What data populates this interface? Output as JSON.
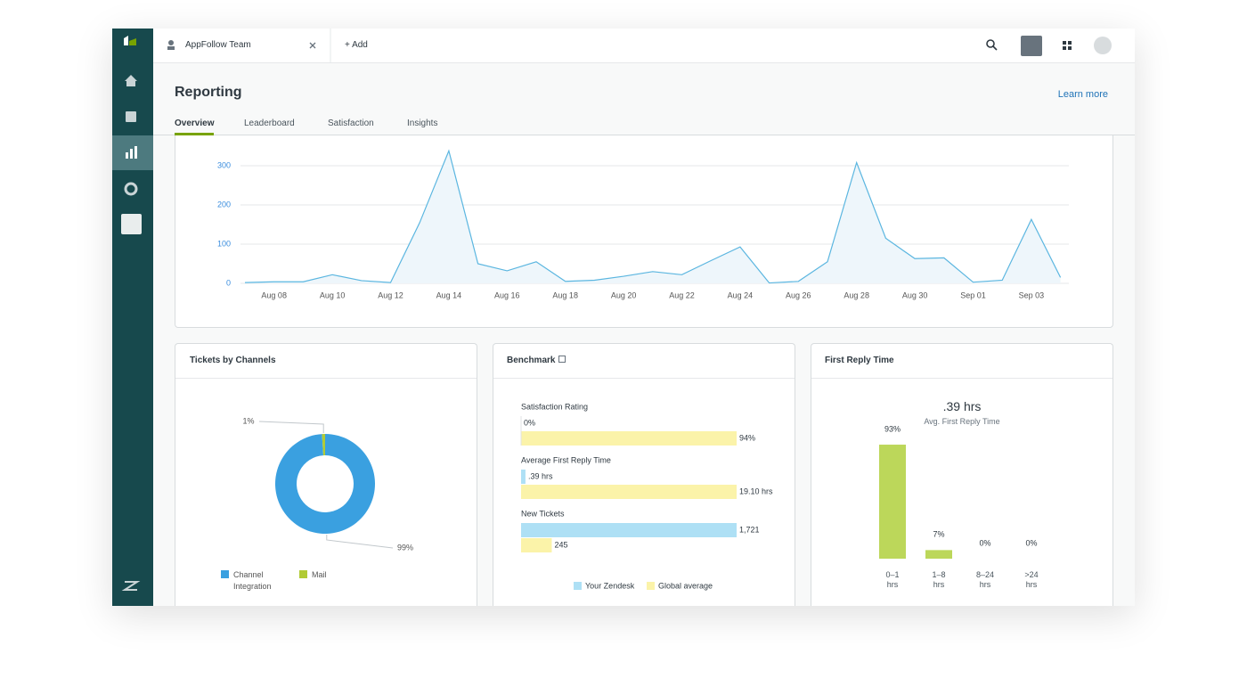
{
  "top_bar": {
    "tab": "AppFollow Team",
    "add": "+ Add"
  },
  "header": {
    "title": "Reporting",
    "link": "Learn more"
  },
  "tabs": [
    "Overview",
    "Leaderboard",
    "Satisfaction",
    "Insights"
  ],
  "chart_data": [
    {
      "type": "line",
      "categories": [
        null,
        "Aug 08",
        null,
        "Aug 10",
        null,
        "Aug 12",
        null,
        "Aug 14",
        null,
        "Aug 16",
        null,
        "Aug 18",
        null,
        "Aug 20",
        null,
        "Aug 22",
        null,
        "Aug 24",
        null,
        "Aug 26",
        null,
        "Aug 28",
        null,
        "Aug 30",
        null,
        "Sep 01",
        null,
        "Sep 03",
        null
      ],
      "values": [
        2,
        4,
        4,
        22,
        7,
        2,
        155,
        338,
        50,
        32,
        55,
        5,
        8,
        18,
        30,
        22,
        58,
        93,
        1,
        5,
        55,
        308,
        115,
        63,
        65,
        3,
        8,
        163,
        15
      ],
      "color": "#5bb6e0",
      "ylim": [
        0,
        350
      ],
      "yticks": [
        0,
        100,
        200,
        300
      ],
      "grid": true
    },
    {
      "type": "pie",
      "title": "Tickets by Channels",
      "donut": true,
      "categories": [
        "Channel Integration",
        "Mail"
      ],
      "values": [
        99,
        1
      ],
      "value_labels": [
        "99%",
        "1%"
      ],
      "colors": [
        "#3aa0e0",
        "#b1cb34"
      ]
    },
    {
      "type": "hbar",
      "title": "Benchmark",
      "categories": [
        "Satisfaction Rating",
        "Average First Reply Time",
        "New Tickets"
      ],
      "series": [
        {
          "name": "Your Zendesk",
          "color": "#aee0f5",
          "values": [
            0,
            0.39,
            1721
          ],
          "value_labels": [
            "0%",
            ".39 hrs",
            "1,721"
          ]
        },
        {
          "name": "Global average",
          "color": "#fbf3a9",
          "values": [
            94,
            19.1,
            245
          ],
          "value_labels": [
            "94%",
            "19.10 hrs",
            "245"
          ]
        }
      ]
    },
    {
      "type": "bar",
      "title": "First Reply Time",
      "summary_value": ".39 hrs",
      "summary_label": "Avg. First Reply Time",
      "categories": [
        "0–1 hrs",
        "1–8 hrs",
        "8–24 hrs",
        ">24 hrs"
      ],
      "values": [
        93,
        7,
        0,
        0
      ],
      "value_labels": [
        "93%",
        "7%",
        "0%",
        "0%"
      ],
      "color": "#bcd75a"
    }
  ]
}
